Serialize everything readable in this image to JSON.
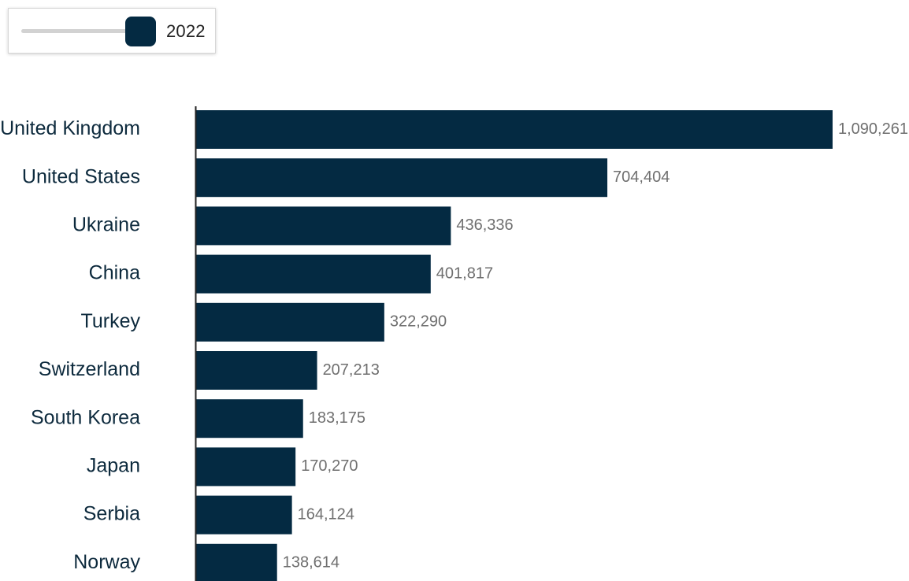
{
  "controls": {
    "year_label": "2022",
    "slider_value": 1.0,
    "accent_color": "#042a42"
  },
  "chart_data": {
    "type": "bar",
    "orientation": "horizontal",
    "categories": [
      "United Kingdom",
      "United States",
      "Ukraine",
      "China",
      "Turkey",
      "Switzerland",
      "South Korea",
      "Japan",
      "Serbia",
      "Norway"
    ],
    "values": [
      1090261,
      704404,
      436336,
      401817,
      322290,
      207213,
      183175,
      170270,
      164124,
      138614
    ],
    "value_labels": [
      "1,090,261",
      "704,404",
      "436,336",
      "401,817",
      "322,290",
      "207,213",
      "183,175",
      "170,270",
      "164,124",
      "138,614"
    ],
    "xlim": [
      0,
      1090261
    ],
    "grid": false,
    "legend": "none",
    "bar_color": "#042a42",
    "label_color": "#0d2a3d",
    "value_color": "#6f6f6f"
  }
}
